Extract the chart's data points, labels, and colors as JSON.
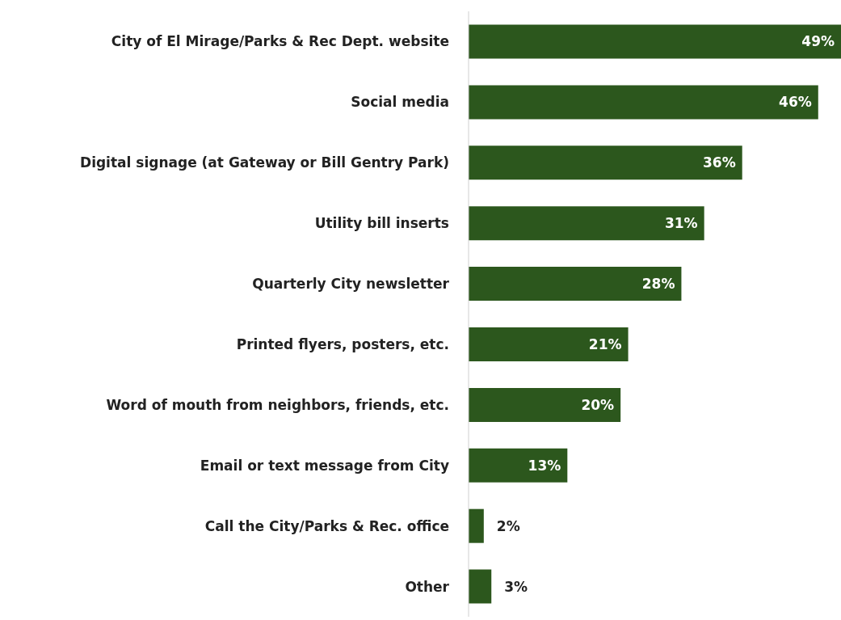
{
  "chart_data": {
    "type": "bar",
    "orientation": "horizontal",
    "categories": [
      "City of El Mirage/Parks & Rec Dept. website",
      "Social media",
      "Digital signage (at Gateway or Bill Gentry Park)",
      "Utility bill inserts",
      "Quarterly City newsletter",
      "Printed flyers, posters, etc.",
      "Word of mouth from neighbors, friends, etc.",
      "Email or text message from City",
      "Call the City/Parks & Rec. office",
      "Other"
    ],
    "values": [
      49,
      46,
      36,
      31,
      28,
      21,
      20,
      13,
      2,
      3
    ],
    "value_labels": [
      "49%",
      "46%",
      "36%",
      "31%",
      "28%",
      "21%",
      "20%",
      "13%",
      "2%",
      "3%"
    ],
    "color": "#2c571d",
    "grid": false,
    "legend": false
  }
}
